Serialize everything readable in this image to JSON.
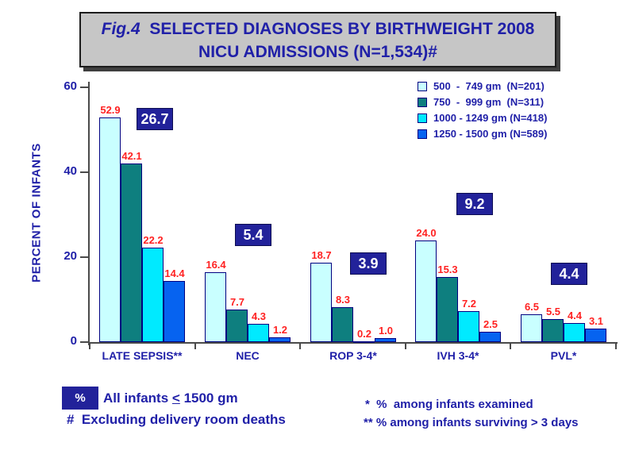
{
  "header": {
    "fig_label": "Fig.4",
    "line1_rest": "  SELECTED DIAGNOSES BY BIRTHWEIGHT 2008",
    "line2": "NICU ADMISSIONS (N=1,534)#"
  },
  "chart_data": {
    "type": "bar",
    "title": "Fig.4 SELECTED DIAGNOSES BY BIRTHWEIGHT 2008 NICU ADMISSIONS (N=1,534)#",
    "xlabel": "",
    "ylabel": "PERCENT OF INFANTS",
    "ylim": [
      0,
      60
    ],
    "yticks": [
      0,
      20,
      40,
      60
    ],
    "grid": false,
    "legend_position": "top-right",
    "categories": [
      "LATE SEPSIS**",
      "NEC",
      "ROP 3-4*",
      "IVH 3-4*",
      "PVL*"
    ],
    "series": [
      {
        "name": "500  -  749 gm  (N=201)",
        "color": "#c9ffff",
        "values": [
          52.9,
          16.4,
          18.7,
          24.0,
          6.5
        ]
      },
      {
        "name": "750  -  999 gm  (N=311)",
        "color": "#0e7f7f",
        "values": [
          42.1,
          7.7,
          8.3,
          15.3,
          5.5
        ]
      },
      {
        "name": "1000 - 1249 gm (N=418)",
        "color": "#00eaff",
        "values": [
          22.2,
          4.3,
          0.2,
          7.2,
          4.4
        ]
      },
      {
        "name": "1250 - 1500 gm (N=589)",
        "color": "#0663f0",
        "values": [
          14.4,
          1.2,
          1.0,
          2.5,
          3.1
        ]
      }
    ],
    "overall_values": [
      26.7,
      5.4,
      3.9,
      9.2,
      4.4
    ],
    "overall_values_meaning": "All infants < 1500 gm (shown in navy boxes)"
  },
  "footnotes": {
    "pct_symbol": "%",
    "pct_note_pre": "All infants ",
    "pct_note_leq": "<",
    "pct_note_post": " 1500 gm",
    "hash_note": "#  Excluding delivery room deaths",
    "star_note": "*  %  among infants examined",
    "dstar_note": "** % among infants surviving > 3 days"
  },
  "colors": {
    "navy_text": "#2020a8",
    "box_navy": "#22229a",
    "value_red": "#ff2222",
    "bar_border": "#000080",
    "axis_gray": "#4a4a4a",
    "title_bg": "#c6c6c6"
  }
}
